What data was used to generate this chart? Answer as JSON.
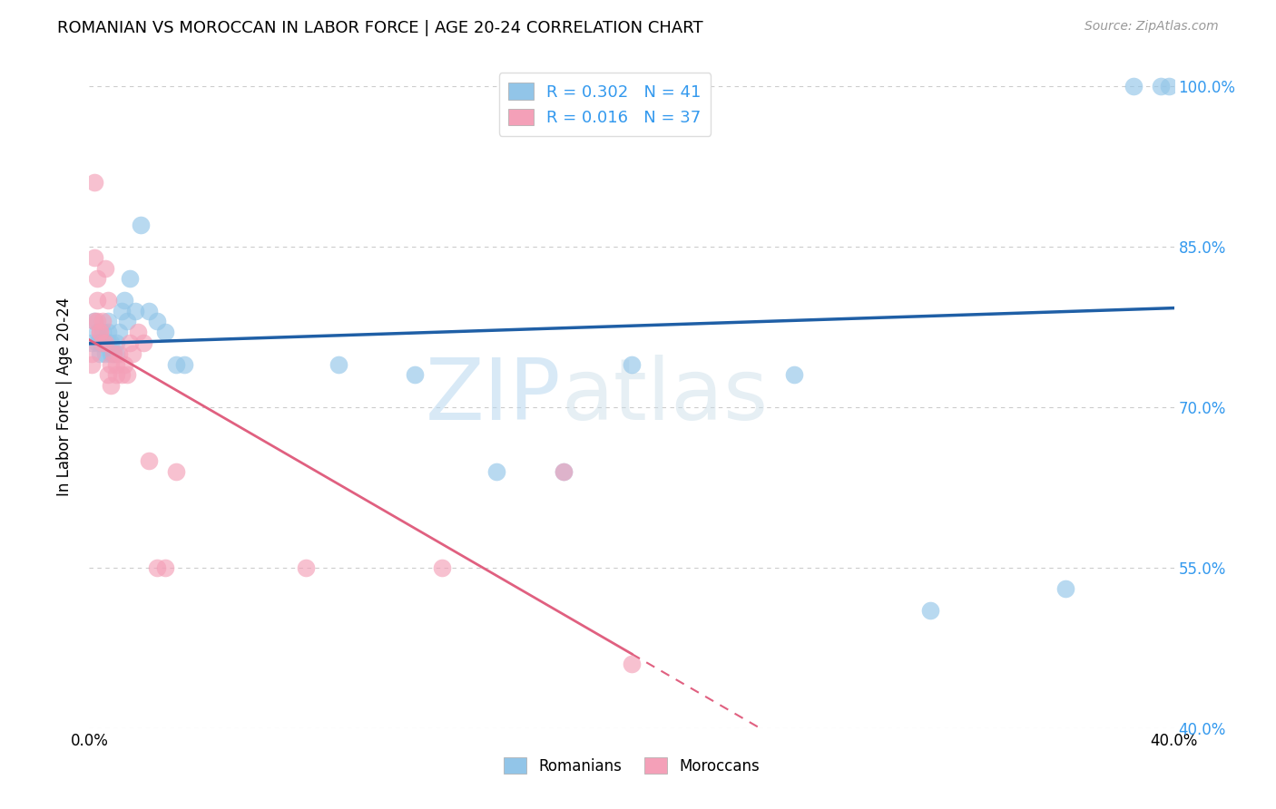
{
  "title": "ROMANIAN VS MOROCCAN IN LABOR FORCE | AGE 20-24 CORRELATION CHART",
  "source": "Source: ZipAtlas.com",
  "ylabel": "In Labor Force | Age 20-24",
  "xlim": [
    0.0,
    0.4
  ],
  "ylim": [
    0.4,
    1.02
  ],
  "x_ticks": [
    0.0,
    0.05,
    0.1,
    0.15,
    0.2,
    0.25,
    0.3,
    0.35,
    0.4
  ],
  "y_ticks": [
    0.4,
    0.55,
    0.7,
    0.85,
    1.0
  ],
  "grid_color": "#cccccc",
  "bg_color": "#ffffff",
  "romanian_color": "#92c5e8",
  "moroccan_color": "#f4a0b8",
  "trend_romanian_color": "#1f5fa6",
  "trend_moroccan_color": "#e06080",
  "R_romanian": 0.302,
  "N_romanian": 41,
  "R_moroccan": 0.016,
  "N_moroccan": 37,
  "romanian_x": [
    0.001,
    0.002,
    0.003,
    0.003,
    0.004,
    0.004,
    0.005,
    0.005,
    0.006,
    0.006,
    0.007,
    0.007,
    0.007,
    0.008,
    0.008,
    0.009,
    0.01,
    0.01,
    0.011,
    0.012,
    0.013,
    0.014,
    0.015,
    0.017,
    0.019,
    0.022,
    0.025,
    0.028,
    0.032,
    0.035,
    0.092,
    0.12,
    0.15,
    0.175,
    0.2,
    0.26,
    0.31,
    0.36,
    0.385,
    0.395,
    0.398
  ],
  "romanian_y": [
    0.76,
    0.78,
    0.77,
    0.76,
    0.76,
    0.75,
    0.77,
    0.76,
    0.76,
    0.75,
    0.76,
    0.77,
    0.78,
    0.76,
    0.75,
    0.75,
    0.76,
    0.75,
    0.77,
    0.79,
    0.8,
    0.78,
    0.82,
    0.79,
    0.87,
    0.79,
    0.78,
    0.77,
    0.74,
    0.74,
    0.74,
    0.73,
    0.64,
    0.64,
    0.74,
    0.73,
    0.51,
    0.53,
    1.0,
    1.0,
    1.0
  ],
  "moroccan_x": [
    0.001,
    0.001,
    0.002,
    0.002,
    0.002,
    0.003,
    0.003,
    0.003,
    0.004,
    0.004,
    0.005,
    0.005,
    0.006,
    0.006,
    0.007,
    0.007,
    0.008,
    0.008,
    0.009,
    0.01,
    0.01,
    0.011,
    0.012,
    0.013,
    0.014,
    0.015,
    0.016,
    0.018,
    0.02,
    0.022,
    0.025,
    0.028,
    0.032,
    0.08,
    0.13,
    0.175,
    0.2
  ],
  "moroccan_y": [
    0.75,
    0.74,
    0.78,
    0.84,
    0.91,
    0.82,
    0.8,
    0.78,
    0.77,
    0.77,
    0.78,
    0.76,
    0.76,
    0.83,
    0.8,
    0.73,
    0.72,
    0.74,
    0.75,
    0.73,
    0.74,
    0.75,
    0.73,
    0.74,
    0.73,
    0.76,
    0.75,
    0.77,
    0.76,
    0.65,
    0.55,
    0.55,
    0.64,
    0.55,
    0.55,
    0.64,
    0.46
  ],
  "watermark_zip": "ZIP",
  "watermark_atlas": "atlas"
}
